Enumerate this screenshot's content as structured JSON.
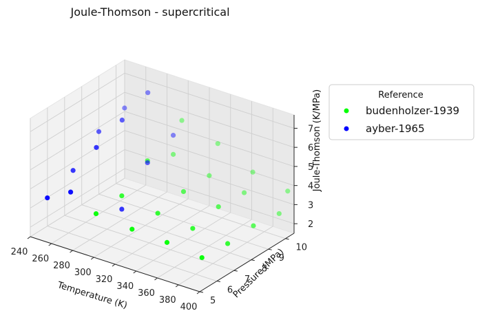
{
  "chart_data": {
    "type": "scatter3d",
    "title": "Joule-Thomson - supercritical",
    "xlabel": "Temperature (K)",
    "ylabel": "Pressure (MPa)",
    "zlabel": "Joule-Thomson (K/MPa)",
    "xlim": [
      240,
      400
    ],
    "ylim": [
      5,
      10.5
    ],
    "zlim": [
      1.5,
      7.7
    ],
    "xticks": [
      "240",
      "260",
      "280",
      "300",
      "320",
      "340",
      "360",
      "380",
      "400"
    ],
    "yticks": [
      "5",
      "6",
      "7",
      "8",
      "9",
      "10"
    ],
    "zticks": [
      "2",
      "3",
      "4",
      "5",
      "6",
      "7"
    ],
    "legend": {
      "title": "Reference",
      "position": "right"
    },
    "series": [
      {
        "name": "budenholzer-1939",
        "color": "#00ff00",
        "points": [
          [
            294,
            5.5,
            3.4
          ],
          [
            328,
            5.5,
            3.2
          ],
          [
            361,
            5.5,
            3.1
          ],
          [
            394,
            5.5,
            2.9
          ],
          [
            294,
            7.0,
            3.5
          ],
          [
            328,
            7.0,
            3.2
          ],
          [
            361,
            7.0,
            3.0
          ],
          [
            394,
            7.0,
            2.8
          ],
          [
            294,
            8.5,
            4.5
          ],
          [
            328,
            8.5,
            3.5
          ],
          [
            361,
            8.5,
            3.3
          ],
          [
            394,
            8.5,
            2.9
          ],
          [
            294,
            10.0,
            4.0
          ],
          [
            328,
            10.0,
            3.5
          ],
          [
            361,
            10.0,
            3.2
          ],
          [
            394,
            10.0,
            2.7
          ],
          [
            294,
            10.5,
            5.5
          ],
          [
            328,
            10.5,
            4.9
          ],
          [
            361,
            10.5,
            4.0
          ],
          [
            394,
            10.5,
            3.6
          ]
        ]
      },
      {
        "name": "ayber-1965",
        "color": "#0000ff",
        "points": [
          [
            248,
            5.5,
            3.4
          ],
          [
            248,
            7.0,
            4.0
          ],
          [
            248,
            8.5,
            5.2
          ],
          [
            248,
            10.0,
            5.6
          ],
          [
            270,
            5.5,
            4.1
          ],
          [
            270,
            7.0,
            5.6
          ],
          [
            270,
            8.5,
            6.2
          ],
          [
            270,
            10.0,
            6.8
          ],
          [
            294,
            7.0,
            2.8
          ],
          [
            294,
            8.5,
            4.4
          ],
          [
            294,
            10.0,
            5.0
          ]
        ]
      }
    ]
  }
}
